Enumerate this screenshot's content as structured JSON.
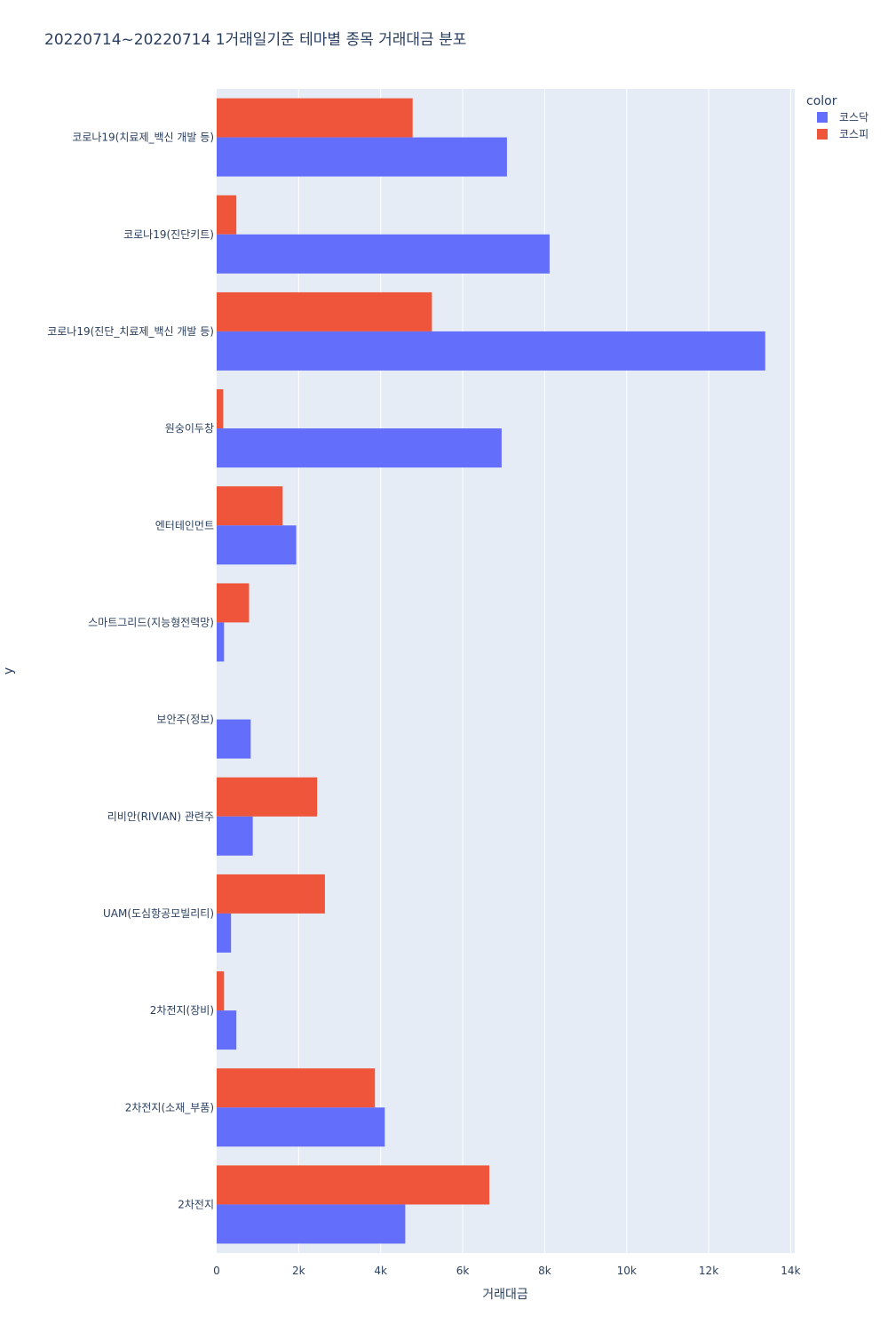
{
  "chart_data": {
    "type": "bar",
    "orientation": "horizontal",
    "title": "20220714~20220714 1거래일기준 테마별 종목 거래대금 분포",
    "xlabel": "거래대금",
    "ylabel": "y",
    "xlim": [
      0,
      14100
    ],
    "xticks": [
      0,
      2000,
      4000,
      6000,
      8000,
      10000,
      12000,
      14000
    ],
    "xtick_labels": [
      "0",
      "2k",
      "4k",
      "6k",
      "8k",
      "10k",
      "12k",
      "14k"
    ],
    "grid": true,
    "legend_title": "color",
    "legend_position": "top-right",
    "categories": [
      "코로나19(치료제_백신 개발 등)",
      "코로나19(진단키트)",
      "코로나19(진단_치료제_백신 개발 등)",
      "원숭이두창",
      "엔터테인먼트",
      "스마트그리드(지능형전력망)",
      "보안주(정보)",
      "리비안(RIVIAN) 관련주",
      "UAM(도심항공모빌리티)",
      "2차전지(장비)",
      "2차전지(소재_부품)",
      "2차전지"
    ],
    "series": [
      {
        "name": "코스닥",
        "color": "#636efa",
        "values": [
          7080,
          8120,
          13380,
          6950,
          1940,
          180,
          830,
          880,
          350,
          480,
          4100,
          4600
        ]
      },
      {
        "name": "코스피",
        "color": "#ef553b",
        "values": [
          4780,
          480,
          5250,
          160,
          1610,
          790,
          0,
          2450,
          2640,
          180,
          3860,
          6650
        ]
      }
    ]
  }
}
